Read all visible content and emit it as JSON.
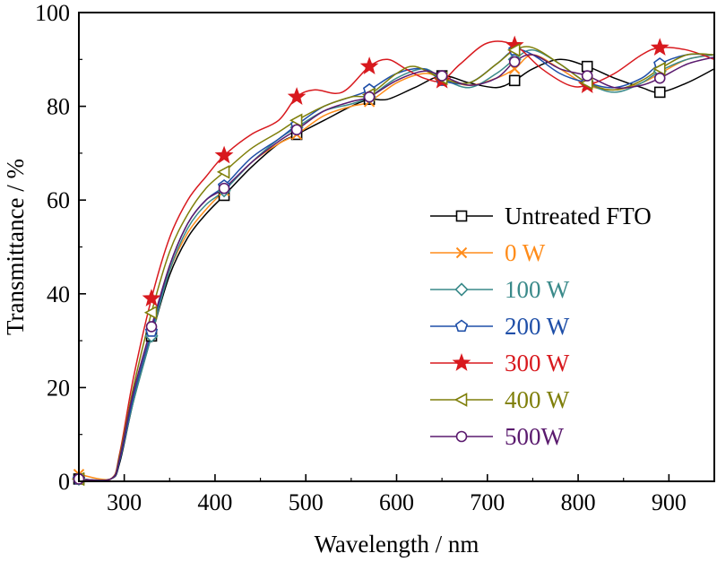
{
  "chart_data": {
    "type": "line",
    "title": "",
    "xlabel": "Wavelength / nm",
    "ylabel": "Transmittance / %",
    "xlim": [
      250,
      950
    ],
    "ylim": [
      0,
      100
    ],
    "xticks": [
      300,
      400,
      500,
      600,
      700,
      800,
      900
    ],
    "yticks": [
      0,
      20,
      40,
      60,
      80,
      100
    ],
    "grid": false,
    "legend_position": "right-middle",
    "series": [
      {
        "name": "Untreated FTO",
        "color": "#000000",
        "marker": "square",
        "x": [
          250,
          285,
          295,
          310,
          330,
          350,
          370,
          390,
          410,
          440,
          470,
          490,
          520,
          550,
          570,
          590,
          620,
          650,
          680,
          710,
          730,
          750,
          780,
          810,
          840,
          870,
          890,
          920,
          950
        ],
        "y": [
          0.5,
          0.5,
          4,
          17,
          31,
          44,
          52,
          57,
          61,
          67,
          72,
          74,
          77,
          80,
          81.5,
          81.5,
          84,
          86.5,
          85,
          84,
          85.5,
          88,
          90,
          88.5,
          86,
          84,
          83,
          85,
          88
        ],
        "marker_x": [
          250,
          330,
          410,
          490,
          570,
          650,
          730,
          810,
          890
        ]
      },
      {
        "name": "0 W",
        "color": "#FF8C1A",
        "marker": "x",
        "x": [
          250,
          285,
          295,
          310,
          330,
          350,
          370,
          390,
          410,
          440,
          470,
          490,
          520,
          550,
          570,
          600,
          630,
          650,
          680,
          710,
          730,
          750,
          780,
          810,
          840,
          870,
          890,
          920,
          950
        ],
        "y": [
          1.5,
          0.5,
          5,
          18,
          32,
          45,
          53,
          58,
          62,
          68,
          72,
          74,
          78,
          80,
          81,
          85,
          87,
          86,
          84.5,
          86,
          88,
          91,
          88,
          84.5,
          83.5,
          85,
          87,
          90,
          91
        ],
        "marker_x": [
          250,
          330,
          410,
          490,
          570,
          650,
          730,
          810,
          890
        ]
      },
      {
        "name": "100 W",
        "color": "#3A8A8A",
        "marker": "diamond",
        "x": [
          250,
          285,
          295,
          310,
          330,
          350,
          370,
          390,
          410,
          440,
          470,
          490,
          520,
          550,
          570,
          600,
          630,
          650,
          680,
          710,
          730,
          750,
          780,
          810,
          840,
          870,
          890,
          920,
          950
        ],
        "y": [
          0.5,
          0.5,
          4.5,
          17,
          31,
          45,
          54,
          59,
          62,
          68,
          73,
          75.5,
          79,
          80.5,
          82,
          86,
          88,
          86,
          84,
          87,
          90,
          92,
          89,
          85,
          83,
          85,
          87.5,
          90,
          91
        ],
        "marker_x": [
          250,
          330,
          410,
          490,
          570,
          650,
          730,
          810,
          890
        ]
      },
      {
        "name": "200 W",
        "color": "#1F4FA8",
        "marker": "pentagon",
        "x": [
          250,
          285,
          295,
          310,
          330,
          350,
          370,
          390,
          410,
          440,
          470,
          490,
          520,
          550,
          570,
          600,
          630,
          650,
          680,
          710,
          730,
          750,
          780,
          810,
          840,
          870,
          890,
          920,
          950
        ],
        "y": [
          0.5,
          0.5,
          4.5,
          18,
          32,
          46,
          55,
          60,
          63,
          69,
          73,
          76,
          80,
          82,
          83.5,
          87,
          88,
          85.5,
          85,
          89,
          92,
          91,
          87,
          85,
          84,
          86,
          89,
          91,
          91
        ],
        "marker_x": [
          250,
          330,
          410,
          490,
          570,
          650,
          730,
          810,
          890
        ]
      },
      {
        "name": "300 W",
        "color": "#D8191E",
        "marker": "star",
        "x": [
          250,
          285,
          295,
          310,
          330,
          350,
          370,
          390,
          410,
          440,
          470,
          490,
          510,
          540,
          570,
          590,
          610,
          630,
          650,
          670,
          700,
          730,
          760,
          790,
          810,
          840,
          870,
          890,
          920,
          950
        ],
        "y": [
          0.5,
          0.5,
          6,
          22,
          39,
          52,
          60,
          65,
          69.5,
          74,
          77,
          82,
          83.5,
          83,
          88.5,
          90,
          88,
          86,
          85.5,
          89,
          93.5,
          93,
          88,
          84.5,
          84.5,
          87,
          91,
          92.5,
          92,
          90
        ],
        "marker_x": [
          330,
          410,
          490,
          570,
          650,
          730,
          810,
          890
        ]
      },
      {
        "name": "400 W",
        "color": "#7F7F0A",
        "marker": "triangle-left",
        "x": [
          250,
          285,
          295,
          310,
          330,
          350,
          370,
          390,
          410,
          440,
          470,
          490,
          520,
          550,
          570,
          600,
          620,
          650,
          680,
          710,
          730,
          750,
          780,
          810,
          840,
          870,
          890,
          920,
          950
        ],
        "y": [
          0.5,
          0.5,
          5.5,
          20,
          36,
          49,
          57,
          62.5,
          66,
          71,
          74.5,
          77,
          80,
          82,
          82.5,
          87,
          88.5,
          86,
          85,
          89,
          92,
          92.5,
          89,
          85,
          83.5,
          85.5,
          88,
          91,
          91
        ],
        "marker_x": [
          250,
          330,
          410,
          490,
          570,
          650,
          730,
          810,
          890
        ]
      },
      {
        "name": "500W",
        "color": "#5A1A6E",
        "marker": "circle",
        "x": [
          250,
          285,
          295,
          310,
          330,
          350,
          370,
          390,
          410,
          440,
          470,
          490,
          520,
          550,
          570,
          600,
          630,
          650,
          680,
          710,
          730,
          750,
          780,
          810,
          840,
          870,
          890,
          920,
          950
        ],
        "y": [
          0.5,
          0.5,
          5,
          19,
          33,
          46,
          55,
          60,
          62.5,
          68,
          72.5,
          75,
          79,
          81,
          82,
          85.5,
          87.5,
          86.5,
          84.5,
          86,
          89.5,
          91,
          88,
          86.5,
          84,
          84.5,
          86,
          89,
          90.5
        ],
        "marker_x": [
          250,
          330,
          410,
          490,
          570,
          650,
          730,
          810,
          890
        ]
      }
    ]
  }
}
